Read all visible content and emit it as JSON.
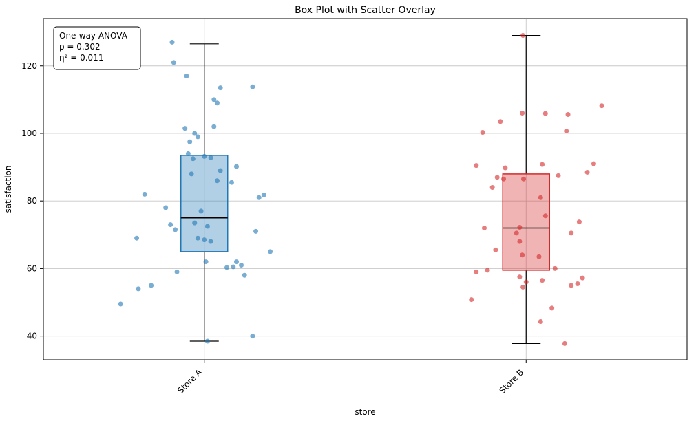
{
  "chart_data": {
    "type": "box",
    "title": "Box Plot with Scatter Overlay",
    "xlabel": "store",
    "ylabel": "satisfaction",
    "ylim": [
      33,
      134
    ],
    "yticks": [
      40,
      60,
      80,
      100,
      120
    ],
    "grid": true,
    "annotation": {
      "lines": [
        "One-way ANOVA",
        "p = 0.302",
        "η² = 0.011"
      ]
    },
    "colors": {
      "store_a": "#1f77b4",
      "store_b": "#d62728",
      "grid": "#c8c8c8",
      "box_lines": "#000000"
    },
    "groups": [
      {
        "label": "Store A",
        "point_color": "#1f77b4",
        "box_fill": "#1f77b4",
        "box_stroke": "#1f77b4",
        "box": {
          "whisker_low": 38.5,
          "q1": 65,
          "median": 75,
          "q3": 93.5,
          "whisker_high": 126.5
        },
        "points": [
          [
            -0.26,
            49.5
          ],
          [
            -0.205,
            54
          ],
          [
            -0.165,
            55
          ],
          [
            -0.21,
            69
          ],
          [
            -0.185,
            82
          ],
          [
            -0.12,
            78
          ],
          [
            -0.105,
            73
          ],
          [
            -0.09,
            71.5
          ],
          [
            -0.085,
            59
          ],
          [
            -0.1,
            127
          ],
          [
            -0.095,
            121
          ],
          [
            -0.055,
            117
          ],
          [
            -0.06,
            101.5
          ],
          [
            -0.045,
            97.5
          ],
          [
            -0.03,
            100
          ],
          [
            -0.02,
            99
          ],
          [
            -0.05,
            94
          ],
          [
            -0.035,
            92.5
          ],
          [
            0.0,
            93.2
          ],
          [
            -0.04,
            88
          ],
          [
            0.02,
            92.8
          ],
          [
            -0.01,
            77
          ],
          [
            -0.02,
            69
          ],
          [
            0.0,
            68.5
          ],
          [
            -0.03,
            73.5
          ],
          [
            0.01,
            72.5
          ],
          [
            0.02,
            68
          ],
          [
            0.005,
            62
          ],
          [
            0.01,
            38.5
          ],
          [
            0.03,
            110
          ],
          [
            0.04,
            109
          ],
          [
            0.05,
            113.5
          ],
          [
            0.03,
            102
          ],
          [
            0.05,
            89
          ],
          [
            0.04,
            86
          ],
          [
            0.085,
            85.5
          ],
          [
            0.1,
            90.2
          ],
          [
            0.15,
            113.8
          ],
          [
            0.17,
            81
          ],
          [
            0.185,
            81.8
          ],
          [
            0.16,
            71
          ],
          [
            0.07,
            60.3
          ],
          [
            0.09,
            60.5
          ],
          [
            0.1,
            62
          ],
          [
            0.115,
            61
          ],
          [
            0.125,
            58
          ],
          [
            0.15,
            40
          ],
          [
            0.205,
            65
          ]
        ]
      },
      {
        "label": "Store B",
        "point_color": "#d62728",
        "box_fill": "#d62728",
        "box_stroke": "#d62728",
        "box": {
          "whisker_low": 37.8,
          "q1": 59.5,
          "median": 72,
          "q3": 88,
          "whisker_high": 129
        },
        "points": [
          [
            -0.17,
            50.8
          ],
          [
            -0.155,
            59
          ],
          [
            -0.12,
            59.5
          ],
          [
            -0.155,
            90.5
          ],
          [
            -0.13,
            72
          ],
          [
            -0.105,
            84
          ],
          [
            -0.09,
            87
          ],
          [
            -0.07,
            86.5
          ],
          [
            -0.095,
            65.5
          ],
          [
            -0.135,
            100.3
          ],
          [
            -0.08,
            103.5
          ],
          [
            -0.065,
            89.8
          ],
          [
            -0.01,
            129
          ],
          [
            -0.012,
            106
          ],
          [
            -0.008,
            86.5
          ],
          [
            -0.02,
            72.2
          ],
          [
            -0.03,
            70.5
          ],
          [
            -0.02,
            68
          ],
          [
            -0.012,
            64
          ],
          [
            -0.02,
            57.5
          ],
          [
            -0.01,
            54.5
          ],
          [
            0.0,
            56
          ],
          [
            0.06,
            105.9
          ],
          [
            0.05,
            90.8
          ],
          [
            0.045,
            81
          ],
          [
            0.06,
            75.6
          ],
          [
            0.04,
            63.5
          ],
          [
            0.05,
            56.5
          ],
          [
            0.045,
            44.3
          ],
          [
            0.09,
            60
          ],
          [
            0.08,
            48.3
          ],
          [
            0.1,
            87.5
          ],
          [
            0.13,
            105.6
          ],
          [
            0.125,
            100.7
          ],
          [
            0.12,
            37.8
          ],
          [
            0.14,
            70.5
          ],
          [
            0.165,
            73.8
          ],
          [
            0.14,
            55
          ],
          [
            0.16,
            55.5
          ],
          [
            0.175,
            57.2
          ],
          [
            0.19,
            88.5
          ],
          [
            0.21,
            91
          ],
          [
            0.235,
            108.2
          ]
        ]
      }
    ]
  }
}
